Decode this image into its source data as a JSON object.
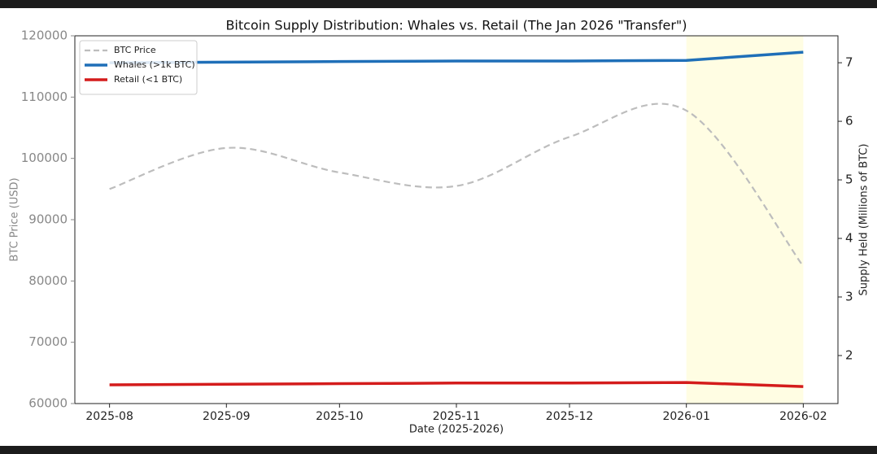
{
  "chart_data": {
    "type": "line",
    "title": "Bitcoin Supply Distribution: Whales vs. Retail (The Jan 2026 \"Transfer\")",
    "x_label": "Date (2025-2026)",
    "y_label": "BTC Price (USD)",
    "y2_label": "Supply Held (Millions of BTC)",
    "x": [
      "2025-08",
      "2025-09",
      "2025-10",
      "2025-11",
      "2025-12",
      "2026-01",
      "2026-02"
    ],
    "series": [
      {
        "name": "BTC Price",
        "color": "#bdbdbd",
        "dashed": true,
        "smooth": true,
        "axis": "y",
        "values": [
          95000,
          101700,
          97700,
          95500,
          103500,
          107800,
          82400
        ]
      },
      {
        "name": "Whales (>1k BTC)",
        "color": "#1f6fb8",
        "axis": "y2",
        "values": [
          7.0,
          7.01,
          7.02,
          7.03,
          7.03,
          7.04,
          7.18
        ]
      },
      {
        "name": "Retail (<1 BTC)",
        "color": "#d41c1c",
        "axis": "y2",
        "values": [
          1.5,
          1.51,
          1.52,
          1.53,
          1.53,
          1.54,
          1.47
        ]
      }
    ],
    "highlight": {
      "from": "2026-01",
      "to": "2026-02",
      "color": "#fffde3"
    },
    "ylim": [
      60000,
      120000
    ],
    "yticks": [
      60000,
      70000,
      80000,
      90000,
      100000,
      110000,
      120000
    ],
    "y2lim": [
      1.18,
      7.46
    ],
    "y2ticks": [
      2,
      3,
      4,
      5,
      6,
      7
    ],
    "legend": "upper left"
  }
}
